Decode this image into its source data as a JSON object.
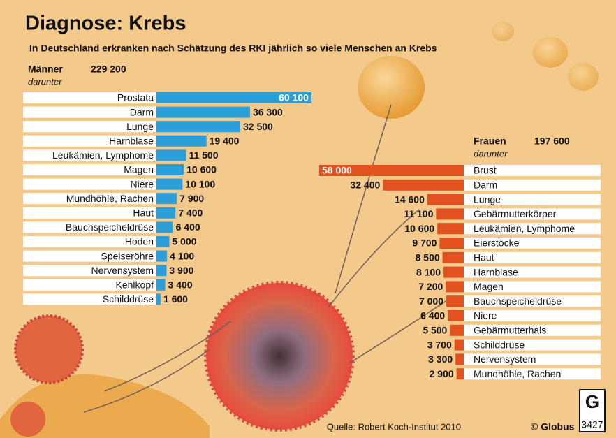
{
  "header": {
    "title": "Diagnose: Krebs",
    "subtitle": "In Deutschland erkranken nach Schätzung des RKI jährlich so viele Menschen an Krebs"
  },
  "chart_data": [
    {
      "type": "bar",
      "title": "Männer",
      "total_label": "229 200",
      "note": "darunter",
      "color": "#2c9fd9",
      "xlim": [
        0,
        65000
      ],
      "categories": [
        "Prostata",
        "Darm",
        "Lunge",
        "Harnblase",
        "Leukämien, Lymphome",
        "Magen",
        "Niere",
        "Mundhöhle, Rachen",
        "Haut",
        "Bauchspeicheldrüse",
        "Hoden",
        "Speiseröhre",
        "Nervensystem",
        "Kehlkopf",
        "Schilddrüse"
      ],
      "values": [
        60100,
        36300,
        32500,
        19400,
        11500,
        10600,
        10100,
        7900,
        7400,
        6400,
        5000,
        4100,
        3900,
        3400,
        1600
      ],
      "value_labels": [
        "60 100",
        "36 300",
        "32 500",
        "19 400",
        "11 500",
        "10 600",
        "10 100",
        "7 900",
        "7 400",
        "6 400",
        "5 000",
        "4 100",
        "3 900",
        "3 400",
        "1 600"
      ]
    },
    {
      "type": "bar",
      "title": "Frauen",
      "total_label": "197 600",
      "note": "darunter",
      "color": "#e2521f",
      "xlim": [
        0,
        65000
      ],
      "categories": [
        "Brust",
        "Darm",
        "Lunge",
        "Gebärmutterkörper",
        "Leukämien, Lymphome",
        "Eierstöcke",
        "Haut",
        "Harnblase",
        "Magen",
        "Bauchspeicheldrüse",
        "Niere",
        "Gebärmutterhals",
        "Schilddrüse",
        "Nervensystem",
        "Mundhöhle, Rachen"
      ],
      "values": [
        58000,
        32400,
        14600,
        11100,
        10600,
        9700,
        8500,
        8100,
        7200,
        7000,
        6400,
        5500,
        3700,
        3300,
        2900
      ],
      "value_labels": [
        "58 000",
        "32 400",
        "14 600",
        "11 100",
        "10 600",
        "9 700",
        "8 500",
        "8 100",
        "7 200",
        "7 000",
        "6 400",
        "5 500",
        "3 700",
        "3 300",
        "2 900"
      ]
    }
  ],
  "footer": {
    "source": "Quelle: Robert Koch-Institut 2010",
    "credit": "© Globus",
    "number": "3427"
  }
}
